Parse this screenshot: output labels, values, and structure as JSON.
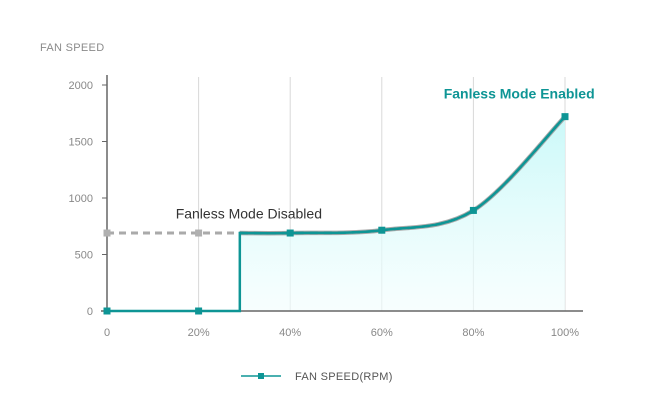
{
  "chart_data": {
    "type": "line",
    "title": "FAN SPEED",
    "x": [
      "0",
      "20%",
      "40%",
      "60%",
      "80%",
      "100%"
    ],
    "xlim": [
      0,
      100
    ],
    "ylim": [
      0,
      2000
    ],
    "yticks": [
      0,
      500,
      1000,
      1500,
      2000
    ],
    "grid": "vertical",
    "series": [
      {
        "name": "FAN SPEED(RPM)",
        "color": "#0e9595",
        "x": [
          0,
          20,
          40,
          60,
          80,
          100
        ],
        "values": [
          0,
          0,
          690,
          715,
          890,
          1720
        ],
        "step": {
          "x": 29,
          "from": 0,
          "to": 690
        }
      },
      {
        "color": "#aaaaaa",
        "dashed": true,
        "x": [
          0,
          20,
          40,
          60,
          80,
          100
        ],
        "values": [
          690,
          690,
          690,
          715,
          890,
          1720
        ]
      }
    ],
    "annotations": [
      {
        "text": "Fanless Mode Enabled",
        "x": 90,
        "y": 1880,
        "color": "#0e9595"
      },
      {
        "text": "Fanless Mode Disabled",
        "x": 15,
        "y": 820,
        "color": "#333333"
      }
    ],
    "legend": {
      "position": "bottom-center",
      "entries": [
        "FAN SPEED(RPM)"
      ]
    },
    "colors": {
      "fill_top": "#d6fbfb",
      "axis": "#666666",
      "grid": "#d8d8d8"
    }
  }
}
